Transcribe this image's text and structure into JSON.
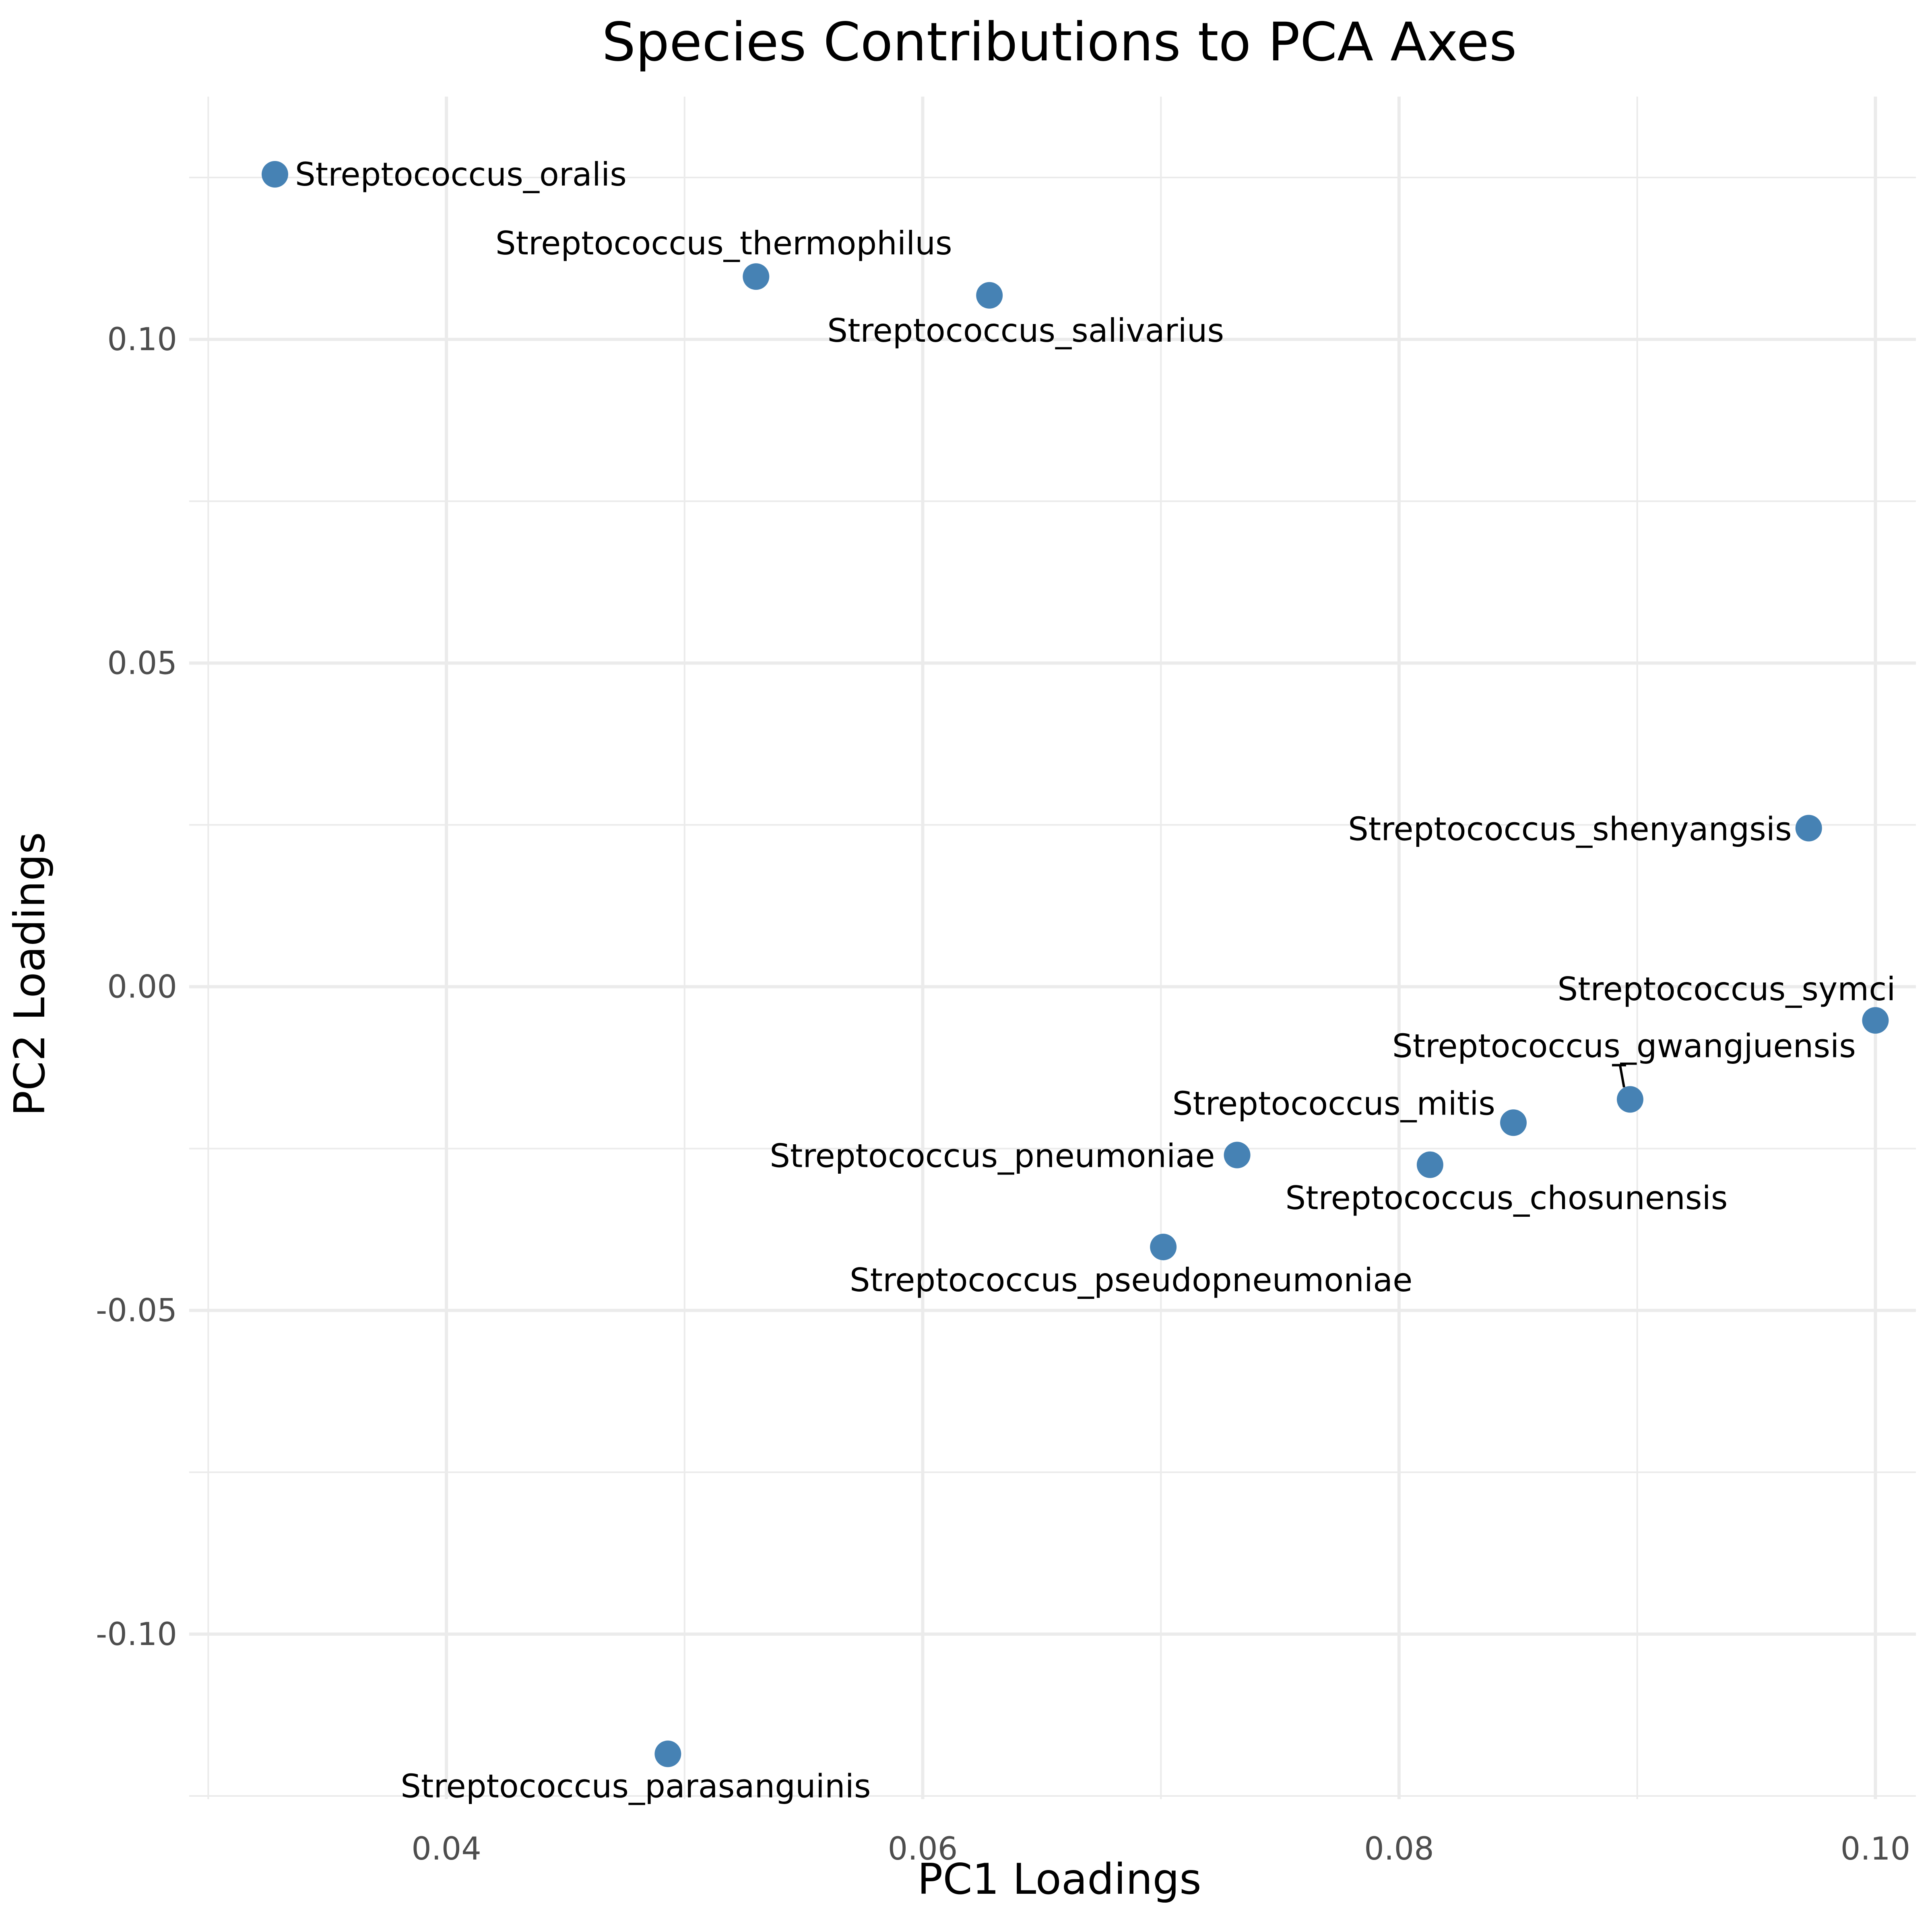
{
  "chart_data": {
    "type": "scatter",
    "title": "Species Contributions to PCA Axes",
    "xlabel": "PC1 Loadings",
    "ylabel": "PC2 Loadings",
    "xlim": [
      0.0292,
      0.1017
    ],
    "ylim": [
      -0.1255,
      0.1375
    ],
    "x_ticks": [
      "0.04",
      "0.06",
      "0.08",
      "0.10"
    ],
    "y_ticks": [
      "0.10",
      "0.05",
      "0.00",
      "-0.05",
      "-0.10"
    ],
    "grid": true,
    "point_color": "#4682b4",
    "points": [
      {
        "label": "Streptococcus_oralis",
        "x": 0.0328,
        "y": 0.1255
      },
      {
        "label": "Streptococcus_thermophilus",
        "x": 0.053,
        "y": 0.1097
      },
      {
        "label": "Streptococcus_salivarius",
        "x": 0.0628,
        "y": 0.1068
      },
      {
        "label": "Streptococcus_shenyangsis",
        "x": 0.0972,
        "y": 0.0245
      },
      {
        "label": "Streptococcus_symci",
        "x": 0.1,
        "y": -0.0052
      },
      {
        "label": "Streptococcus_gwangjuensis",
        "x": 0.0897,
        "y": -0.0174
      },
      {
        "label": "Streptococcus_mitis",
        "x": 0.0848,
        "y": -0.021
      },
      {
        "label": "Streptococcus_chosunensis",
        "x": 0.0813,
        "y": -0.0275
      },
      {
        "label": "Streptococcus_pneumoniae",
        "x": 0.0732,
        "y": -0.026
      },
      {
        "label": "Streptococcus_pseudopneumoniae",
        "x": 0.0701,
        "y": -0.0402
      },
      {
        "label": "Streptococcus_parasanguinis",
        "x": 0.0493,
        "y": -0.1185
      }
    ]
  }
}
